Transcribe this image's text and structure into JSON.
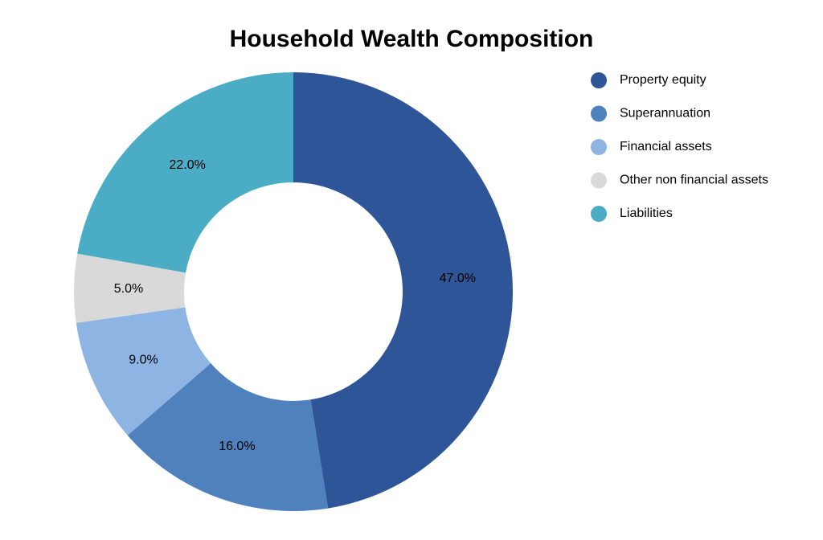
{
  "chart_data": {
    "type": "donut",
    "title": "Household Wealth Composition",
    "categories": [
      "Property equity",
      "Superannuation",
      "Financial assets",
      "Other non financial assets",
      "Liabilities"
    ],
    "values": [
      47,
      16,
      9,
      5,
      22
    ],
    "value_labels": [
      "47.0%",
      "16.0%",
      "9.0%",
      "5.0%",
      "22.0%"
    ],
    "colors": [
      "#2e5597",
      "#4f81bd",
      "#8db4e2",
      "#d9d9d9",
      "#4bacc6"
    ],
    "legend": "top-right"
  }
}
